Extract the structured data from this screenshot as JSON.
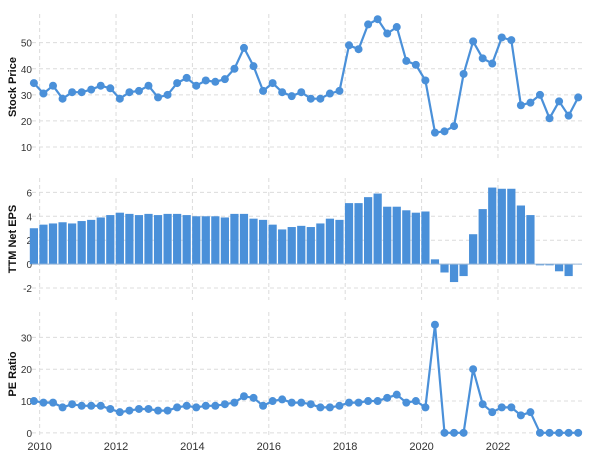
{
  "chart_data": [
    {
      "type": "line",
      "ylabel": "Stock Price",
      "ylim": [
        5,
        61
      ],
      "yticks": [
        10,
        20,
        30,
        40,
        50
      ],
      "color": "#4a90d9",
      "x": [
        2009.85,
        2010.1,
        2010.35,
        2010.6,
        2010.85,
        2011.1,
        2011.35,
        2011.6,
        2011.85,
        2012.1,
        2012.35,
        2012.6,
        2012.85,
        2013.1,
        2013.35,
        2013.6,
        2013.85,
        2014.1,
        2014.35,
        2014.6,
        2014.85,
        2015.1,
        2015.35,
        2015.6,
        2015.85,
        2016.1,
        2016.35,
        2016.6,
        2016.85,
        2017.1,
        2017.35,
        2017.6,
        2017.85,
        2018.1,
        2018.35,
        2018.6,
        2018.85,
        2019.1,
        2019.35,
        2019.6,
        2019.85,
        2020.1,
        2020.35,
        2020.6,
        2020.85,
        2021.1,
        2021.35,
        2021.6,
        2021.85,
        2022.1,
        2022.35,
        2022.6,
        2022.85,
        2023.1,
        2023.35,
        2023.6,
        2023.85,
        2024.1
      ],
      "values": [
        34.5,
        30.5,
        33.5,
        28.5,
        31,
        31,
        32,
        33.5,
        32.5,
        28.5,
        31,
        31.5,
        33.5,
        29,
        30,
        34.5,
        36.5,
        33.5,
        35.5,
        35,
        36,
        40,
        48,
        41,
        31.5,
        34.5,
        31,
        29.5,
        31,
        28.5,
        28.5,
        30.5,
        31.5,
        49,
        47.5,
        57,
        59,
        53.5,
        56,
        43,
        41.5,
        35.5,
        15.5,
        16,
        18,
        38,
        50.5,
        44,
        42,
        52,
        51,
        26,
        27,
        30,
        21,
        27.5,
        22,
        29
      ]
    },
    {
      "type": "bar",
      "ylabel": "TTM Net EPS",
      "ylim": [
        -3,
        7.2
      ],
      "yticks": [
        -2,
        0,
        2,
        4,
        6
      ],
      "color": "#4a90d9",
      "x": [
        2009.85,
        2010.1,
        2010.35,
        2010.6,
        2010.85,
        2011.1,
        2011.35,
        2011.6,
        2011.85,
        2012.1,
        2012.35,
        2012.6,
        2012.85,
        2013.1,
        2013.35,
        2013.6,
        2013.85,
        2014.1,
        2014.35,
        2014.6,
        2014.85,
        2015.1,
        2015.35,
        2015.6,
        2015.85,
        2016.1,
        2016.35,
        2016.6,
        2016.85,
        2017.1,
        2017.35,
        2017.6,
        2017.85,
        2018.1,
        2018.35,
        2018.6,
        2018.85,
        2019.1,
        2019.35,
        2019.6,
        2019.85,
        2020.1,
        2020.35,
        2020.6,
        2020.85,
        2021.1,
        2021.35,
        2021.6,
        2021.85,
        2022.1,
        2022.35,
        2022.6,
        2022.85,
        2023.1,
        2023.35,
        2023.6,
        2023.85,
        2024.1
      ],
      "values": [
        3.0,
        3.3,
        3.4,
        3.5,
        3.4,
        3.6,
        3.7,
        3.9,
        4.1,
        4.3,
        4.2,
        4.1,
        4.2,
        4.1,
        4.2,
        4.2,
        4.1,
        4.0,
        4.0,
        4.0,
        3.9,
        4.2,
        4.2,
        3.8,
        3.7,
        3.3,
        2.9,
        3.1,
        3.2,
        3.1,
        3.4,
        3.8,
        3.7,
        5.1,
        5.1,
        5.6,
        5.9,
        4.8,
        4.8,
        4.5,
        4.3,
        4.4,
        0.4,
        -0.7,
        -1.5,
        -1.0,
        2.5,
        4.6,
        6.4,
        6.3,
        6.3,
        4.9,
        4.1,
        -0.1,
        -0.1,
        -0.6,
        -1.0,
        0
      ]
    },
    {
      "type": "line",
      "ylabel": "PE Ratio",
      "ylim": [
        -1,
        38
      ],
      "yticks": [
        0,
        10,
        20,
        30
      ],
      "color": "#4a90d9",
      "x": [
        2009.85,
        2010.1,
        2010.35,
        2010.6,
        2010.85,
        2011.1,
        2011.35,
        2011.6,
        2011.85,
        2012.1,
        2012.35,
        2012.6,
        2012.85,
        2013.1,
        2013.35,
        2013.6,
        2013.85,
        2014.1,
        2014.35,
        2014.6,
        2014.85,
        2015.1,
        2015.35,
        2015.6,
        2015.85,
        2016.1,
        2016.35,
        2016.6,
        2016.85,
        2017.1,
        2017.35,
        2017.6,
        2017.85,
        2018.1,
        2018.35,
        2018.6,
        2018.85,
        2019.1,
        2019.35,
        2019.6,
        2019.85,
        2020.1,
        2020.35,
        2020.6,
        2020.85,
        2021.1,
        2021.35,
        2021.6,
        2021.85,
        2022.1,
        2022.35,
        2022.6,
        2022.85,
        2023.1,
        2023.35,
        2023.6,
        2023.85,
        2024.1
      ],
      "values": [
        10,
        9.5,
        9.5,
        8,
        9,
        8.5,
        8.5,
        8.5,
        7.5,
        6.5,
        7,
        7.5,
        7.5,
        7,
        7,
        8,
        8.5,
        8,
        8.5,
        8.5,
        9,
        9.5,
        11.5,
        11,
        8.5,
        10,
        10.5,
        9.5,
        9.5,
        9,
        8,
        8,
        8.5,
        9.5,
        9.5,
        10,
        10,
        11,
        12,
        9.5,
        10,
        8,
        34,
        0,
        0,
        0,
        20,
        9,
        6.5,
        8,
        8,
        5.5,
        6.5,
        0,
        0,
        0,
        0,
        0
      ]
    }
  ],
  "x_axis": {
    "ticks": [
      2010,
      2012,
      2014,
      2016,
      2018,
      2020,
      2022
    ],
    "labels": [
      "2010",
      "2012",
      "2014",
      "2016",
      "2018",
      "2020",
      "2022"
    ],
    "range": [
      2009.8,
      2024.2
    ]
  },
  "colors": {
    "series": "#4a90d9",
    "grid": "#dcdcdc",
    "axis_text": "#333333"
  }
}
